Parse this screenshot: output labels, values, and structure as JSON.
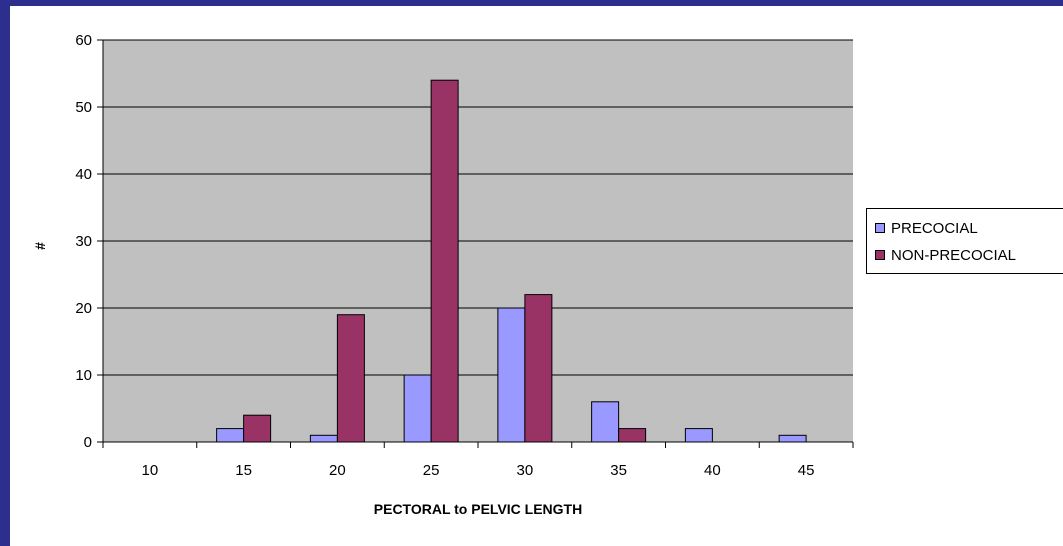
{
  "chart_data": {
    "type": "bar",
    "categories": [
      "10",
      "15",
      "20",
      "25",
      "30",
      "35",
      "40",
      "45"
    ],
    "series": [
      {
        "name": "PRECOCIAL",
        "values": [
          0,
          2,
          1,
          10,
          20,
          6,
          2,
          1
        ],
        "color": "#9999ff"
      },
      {
        "name": "NON-PRECOCIAL",
        "values": [
          0,
          4,
          19,
          54,
          22,
          2,
          0,
          0
        ],
        "color": "#993366"
      }
    ],
    "xlabel": "PECTORAL to PELVIC LENGTH",
    "ylabel": "#",
    "ylim": [
      0,
      60
    ],
    "yticks": [
      "0",
      "10",
      "20",
      "30",
      "40",
      "50",
      "60"
    ],
    "grid": true,
    "plot_background": "#c0c0c0",
    "legend_position": "right"
  }
}
